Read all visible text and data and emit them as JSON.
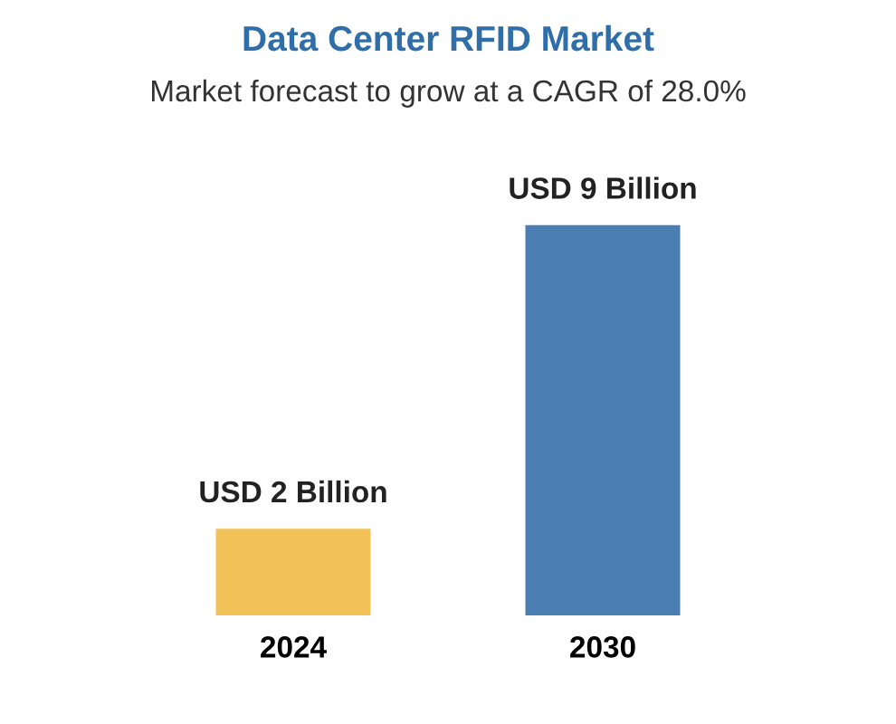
{
  "chart_data": {
    "type": "bar",
    "title": "Data Center RFID Market",
    "subtitle": "Market forecast to grow at a CAGR of 28.0%",
    "categories": [
      "2024",
      "2030"
    ],
    "values": [
      2,
      9
    ],
    "colors": [
      "#f3c259",
      "#4b7fb3"
    ],
    "value_labels": [
      "USD 2 Billion",
      "USD 9 Billion"
    ],
    "grid": false,
    "legend": false
  }
}
